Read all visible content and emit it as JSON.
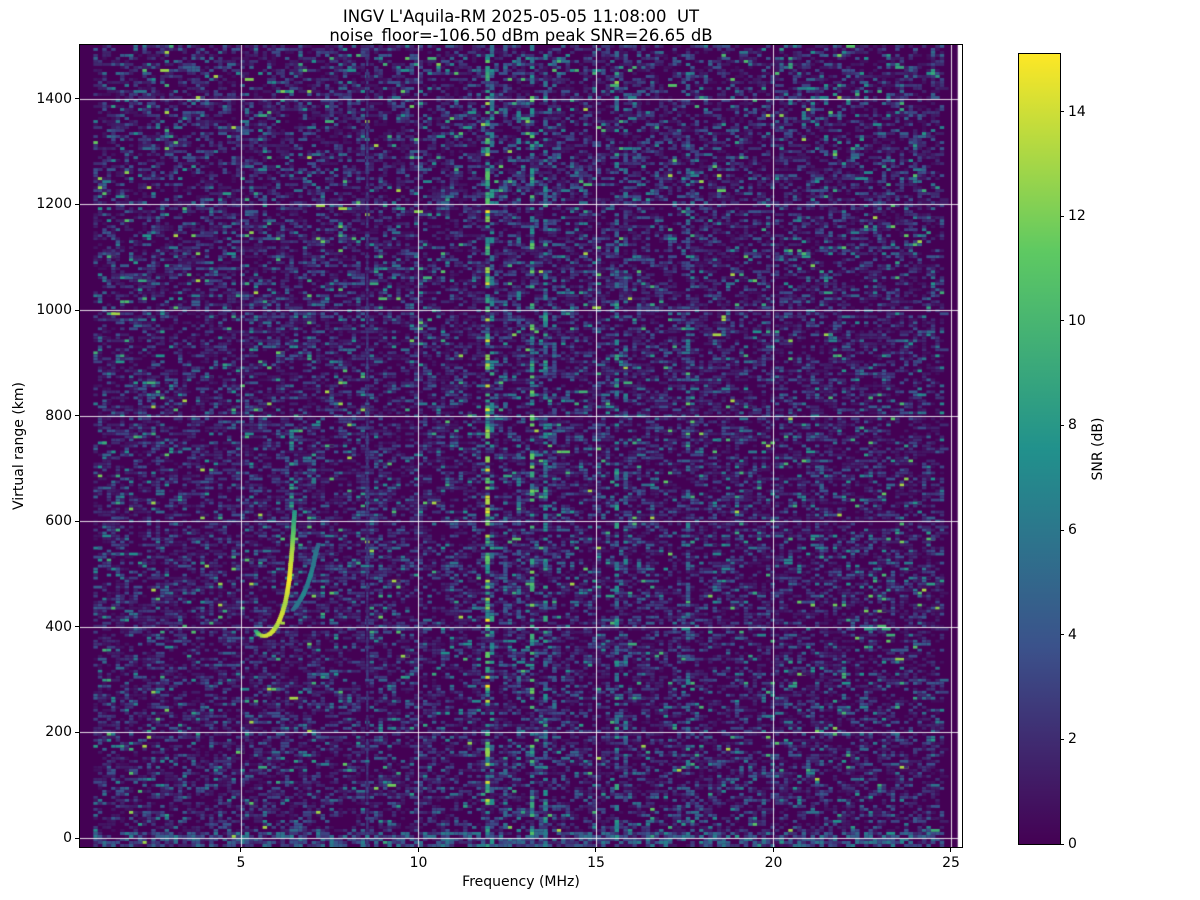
{
  "chart_data": {
    "type": "heatmap",
    "title": "INGV L'Aquila-RM 2025-05-05 11:08:00  UT",
    "subtitle": "noise_floor=-106.50 dBm peak SNR=26.65 dB",
    "xlabel": "Frequency (MHz)",
    "ylabel": "Virtual range (km)",
    "x_ticks": [
      5,
      10,
      15,
      20,
      25
    ],
    "y_ticks": [
      0,
      200,
      400,
      600,
      800,
      1000,
      1200,
      1400
    ],
    "xlim": [
      0.465,
      25.31
    ],
    "ylim": [
      -17,
      1502
    ],
    "grid": true,
    "grid_color": "rgba(255,255,255,0.85)",
    "colormap": "viridis",
    "colormap_stops": [
      "#440154",
      "#3b528b",
      "#21918c",
      "#5ec962",
      "#fde725"
    ],
    "colorbar": {
      "label": "SNR (dB)",
      "ticks": [
        0,
        2,
        4,
        6,
        8,
        10,
        12,
        14
      ],
      "vmin": 0,
      "vmax": 15.1
    },
    "noise_floor_dbm": -106.5,
    "peak_snr_db": 26.65,
    "noise": {
      "seed": 42,
      "fill_fraction": 0.5,
      "mean_db": 2.0,
      "base_db": 0.6,
      "cap_db": 9.5,
      "spark_prob": 0.004
    },
    "blank_columns": {
      "left_mhz": [
        0.465,
        0.85
      ],
      "right_dark_mhz": [
        24.85,
        25.19
      ],
      "right_white_mhz": [
        25.19,
        25.31
      ]
    },
    "trace_o_mode": [
      [
        5.42,
        392,
        8
      ],
      [
        5.5,
        386,
        11
      ],
      [
        5.6,
        383,
        13
      ],
      [
        5.7,
        383,
        14
      ],
      [
        5.8,
        386,
        14
      ],
      [
        5.9,
        392,
        14
      ],
      [
        6.0,
        401,
        13
      ],
      [
        6.08,
        412,
        14
      ],
      [
        6.16,
        426,
        14
      ],
      [
        6.24,
        444,
        13
      ],
      [
        6.3,
        464,
        14
      ],
      [
        6.36,
        490,
        15
      ],
      [
        6.4,
        518,
        14
      ],
      [
        6.44,
        548,
        13
      ],
      [
        6.47,
        578,
        11
      ],
      [
        6.49,
        600,
        9
      ],
      [
        6.51,
        618,
        8
      ]
    ],
    "trace_x_mode": [
      [
        6.46,
        432,
        5
      ],
      [
        6.56,
        440,
        6
      ],
      [
        6.66,
        450,
        6
      ],
      [
        6.76,
        462,
        7
      ],
      [
        6.86,
        478,
        6
      ],
      [
        6.96,
        498,
        7
      ],
      [
        7.04,
        518,
        6
      ],
      [
        7.1,
        538,
        6
      ],
      [
        7.18,
        556,
        5
      ]
    ],
    "echo_columns": [
      {
        "freq_mhz": 6.48,
        "range_km": [
          620,
          780
        ],
        "prob": 0.5,
        "snr": [
          5,
          9
        ]
      },
      {
        "freq_mhz": 7.1,
        "range_km": [
          660,
          725
        ],
        "prob": 0.35,
        "snr": [
          4,
          7
        ]
      }
    ],
    "rfi_stripes": [
      {
        "freq_mhz": 8.62,
        "prob": 0.8,
        "snr": [
          1.5,
          3.5
        ],
        "width": 0.5
      },
      {
        "freq_mhz": 11.95,
        "prob": 0.5,
        "snr": [
          6,
          15
        ],
        "width": 1
      },
      {
        "freq_mhz": 12.12,
        "prob": 0.28,
        "snr": [
          4,
          9
        ],
        "width": 1
      },
      {
        "freq_mhz": 12.45,
        "prob": 0.14,
        "snr": [
          3,
          6
        ],
        "width": 1
      },
      {
        "freq_mhz": 12.85,
        "prob": 0.22,
        "snr": [
          3,
          7
        ],
        "width": 1
      },
      {
        "freq_mhz": 13.22,
        "prob": 0.42,
        "snr": [
          5,
          12
        ],
        "width": 1
      },
      {
        "freq_mhz": 13.55,
        "prob": 0.3,
        "snr": [
          4,
          9
        ],
        "width": 1
      },
      {
        "freq_mhz": 13.8,
        "prob": 0.16,
        "snr": [
          3,
          6
        ],
        "width": 1
      },
      {
        "freq_mhz": 15.55,
        "prob": 0.28,
        "snr": [
          4,
          9
        ],
        "width": 1
      },
      {
        "freq_mhz": 15.82,
        "prob": 0.18,
        "snr": [
          3,
          7
        ],
        "width": 1
      },
      {
        "freq_mhz": 16.2,
        "prob": 0.1,
        "snr": [
          3,
          6
        ],
        "width": 1
      },
      {
        "freq_mhz": 17.55,
        "prob": 0.22,
        "snr": [
          3,
          7
        ],
        "width": 1
      },
      {
        "freq_mhz": 19.05,
        "prob": 0.08,
        "snr": [
          2,
          5
        ],
        "width": 1
      },
      {
        "freq_mhz": 21.3,
        "prob": 0.07,
        "snr": [
          2,
          5
        ],
        "width": 1
      },
      {
        "freq_mhz": 24.0,
        "prob": 0.07,
        "snr": [
          2,
          5
        ],
        "width": 1
      }
    ],
    "ground_band": {
      "range_km": [
        -15,
        10
      ],
      "prob": 0.5,
      "snr": [
        2,
        6.5
      ]
    }
  }
}
